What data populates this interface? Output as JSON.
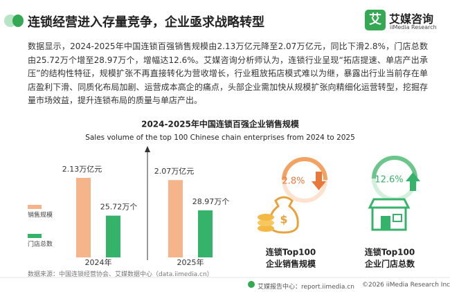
{
  "header": {
    "title": "连锁经营进入存量竞争，企业亟求战略转型",
    "logo_mark": "艾",
    "logo_name": "艾媒咨询",
    "logo_sub": "iiMedia Research"
  },
  "paragraph": "数据显示，2024-2025年中国连锁百强销售规模由2.13万亿元降至2.07万亿元，同比下滑2.8%，门店总数由25.72万个增至28.97万个，增幅达12.6%。艾媒咨询分析师认为，连锁行业呈现“拓店提速、单店产出承压”的结构性特征，规模扩张不再直接转化为营收增长，行业粗放拓店模式难以为继，暴露出行业当前存在单店盈利下滑、同质化布局加剧、运营成本高企的痛点，头部企业需加快从规模扩张向精细化运营转型，挖掘存量市场效益，提升连锁布局的质量与单店产出。",
  "chart_data": {
    "type": "bar",
    "title": "2024-2025年中国连锁百强企业销售规模",
    "subtitle": "Sales volume of the top 100 Chinese chain enterprises  from 2024 to 2025",
    "categories": [
      "2024年",
      "2025年"
    ],
    "series": [
      {
        "name": "销售规模",
        "color": "#f6b48a",
        "values": [
          2.13,
          2.07
        ],
        "value_labels": [
          "2.13万亿元",
          "2.07万亿元"
        ]
      },
      {
        "name": "门店总数",
        "color": "#36b36a",
        "values": [
          25.72,
          28.97
        ],
        "value_labels": [
          "25.72万个",
          "28.97万个"
        ]
      }
    ]
  },
  "kpis": [
    {
      "value": "2.8%",
      "caption": [
        "连锁Top100",
        "企业销售规模"
      ]
    },
    {
      "value": "12.6%",
      "caption": [
        "连锁Top100",
        "企业门店总数"
      ]
    }
  ],
  "source": "数据来源：中国连锁经营协会、艾媒数据中心（data.iimedia.cn）",
  "footer": {
    "left": "艾媒报告中心：report.iimedia.cn",
    "right": "©2026  iiMedia Research  Inc"
  }
}
